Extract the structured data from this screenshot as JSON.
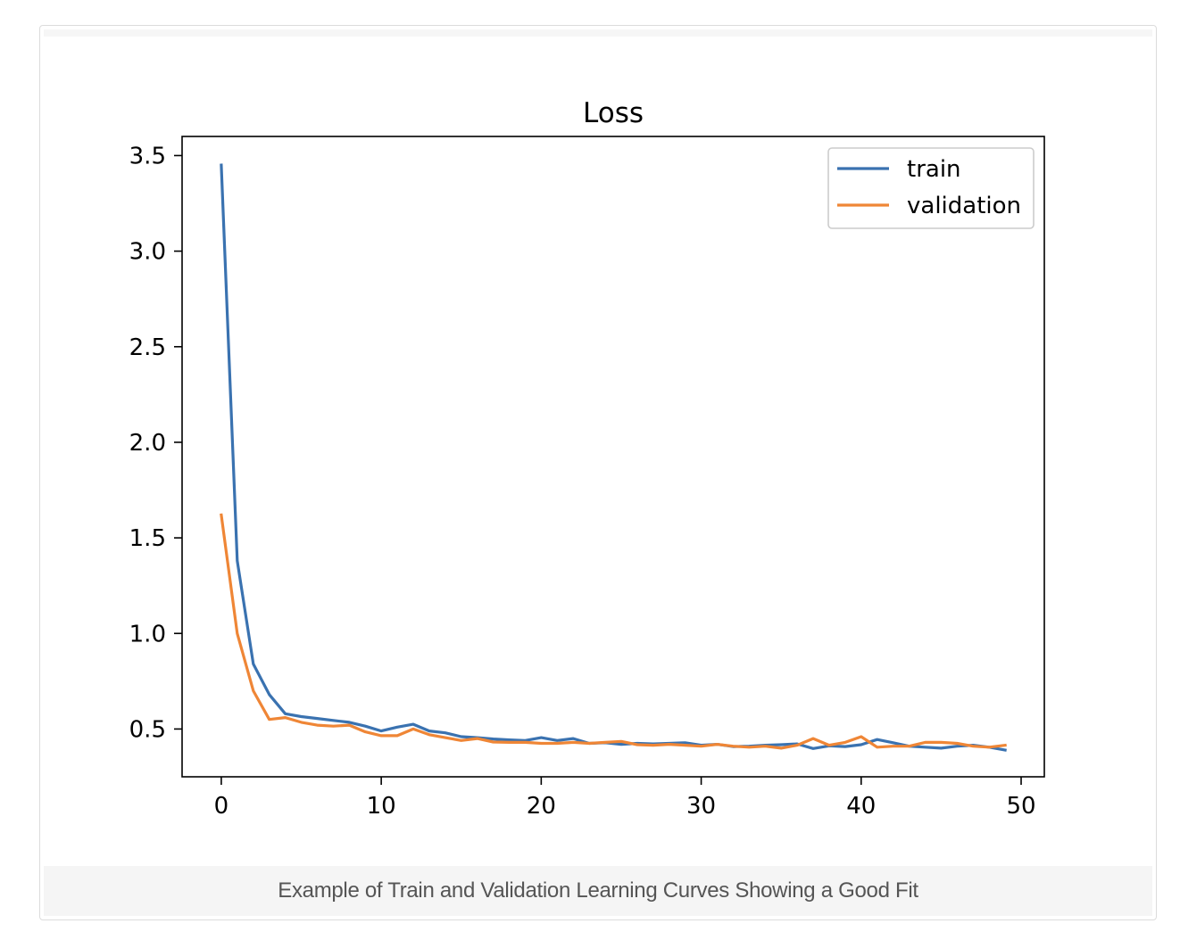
{
  "caption": "Example of Train and Validation Learning Curves Showing a Good Fit",
  "chart_data": {
    "type": "line",
    "title": "Loss",
    "xlabel": "",
    "ylabel": "",
    "xlim": [
      -2.45,
      51.45
    ],
    "ylim": [
      0.25,
      3.6
    ],
    "xticks": [
      0,
      10,
      20,
      30,
      40,
      50
    ],
    "xtick_labels": [
      "0",
      "10",
      "20",
      "30",
      "40",
      "50"
    ],
    "yticks": [
      0.5,
      1.0,
      1.5,
      2.0,
      2.5,
      3.0,
      3.5
    ],
    "ytick_labels": [
      "0.5",
      "1.0",
      "1.5",
      "2.0",
      "2.5",
      "3.0",
      "3.5"
    ],
    "legend_position": "top-right",
    "grid": false,
    "x": [
      0,
      1,
      2,
      3,
      4,
      5,
      6,
      7,
      8,
      9,
      10,
      11,
      12,
      13,
      14,
      15,
      16,
      17,
      18,
      19,
      20,
      21,
      22,
      23,
      24,
      25,
      26,
      27,
      28,
      29,
      30,
      31,
      32,
      33,
      34,
      35,
      36,
      37,
      38,
      39,
      40,
      41,
      42,
      43,
      44,
      45,
      46,
      47,
      48,
      49
    ],
    "series": [
      {
        "name": "train",
        "color": "#3a72b0",
        "values": [
          3.45,
          1.38,
          0.84,
          0.68,
          0.58,
          0.565,
          0.555,
          0.545,
          0.535,
          0.515,
          0.49,
          0.51,
          0.525,
          0.49,
          0.48,
          0.46,
          0.455,
          0.448,
          0.443,
          0.44,
          0.455,
          0.44,
          0.45,
          0.425,
          0.428,
          0.42,
          0.425,
          0.422,
          0.425,
          0.428,
          0.415,
          0.42,
          0.408,
          0.41,
          0.415,
          0.418,
          0.422,
          0.398,
          0.412,
          0.408,
          0.418,
          0.445,
          0.428,
          0.41,
          0.405,
          0.4,
          0.41,
          0.415,
          0.405,
          0.39
        ]
      },
      {
        "name": "validation",
        "color": "#ef8636",
        "values": [
          1.62,
          1.0,
          0.7,
          0.55,
          0.56,
          0.535,
          0.52,
          0.515,
          0.52,
          0.485,
          0.465,
          0.465,
          0.5,
          0.47,
          0.455,
          0.44,
          0.45,
          0.432,
          0.43,
          0.43,
          0.425,
          0.425,
          0.43,
          0.425,
          0.43,
          0.435,
          0.418,
          0.415,
          0.42,
          0.415,
          0.41,
          0.42,
          0.41,
          0.405,
          0.41,
          0.4,
          0.415,
          0.45,
          0.415,
          0.43,
          0.46,
          0.405,
          0.41,
          0.41,
          0.43,
          0.43,
          0.425,
          0.41,
          0.405,
          0.415
        ]
      }
    ]
  }
}
